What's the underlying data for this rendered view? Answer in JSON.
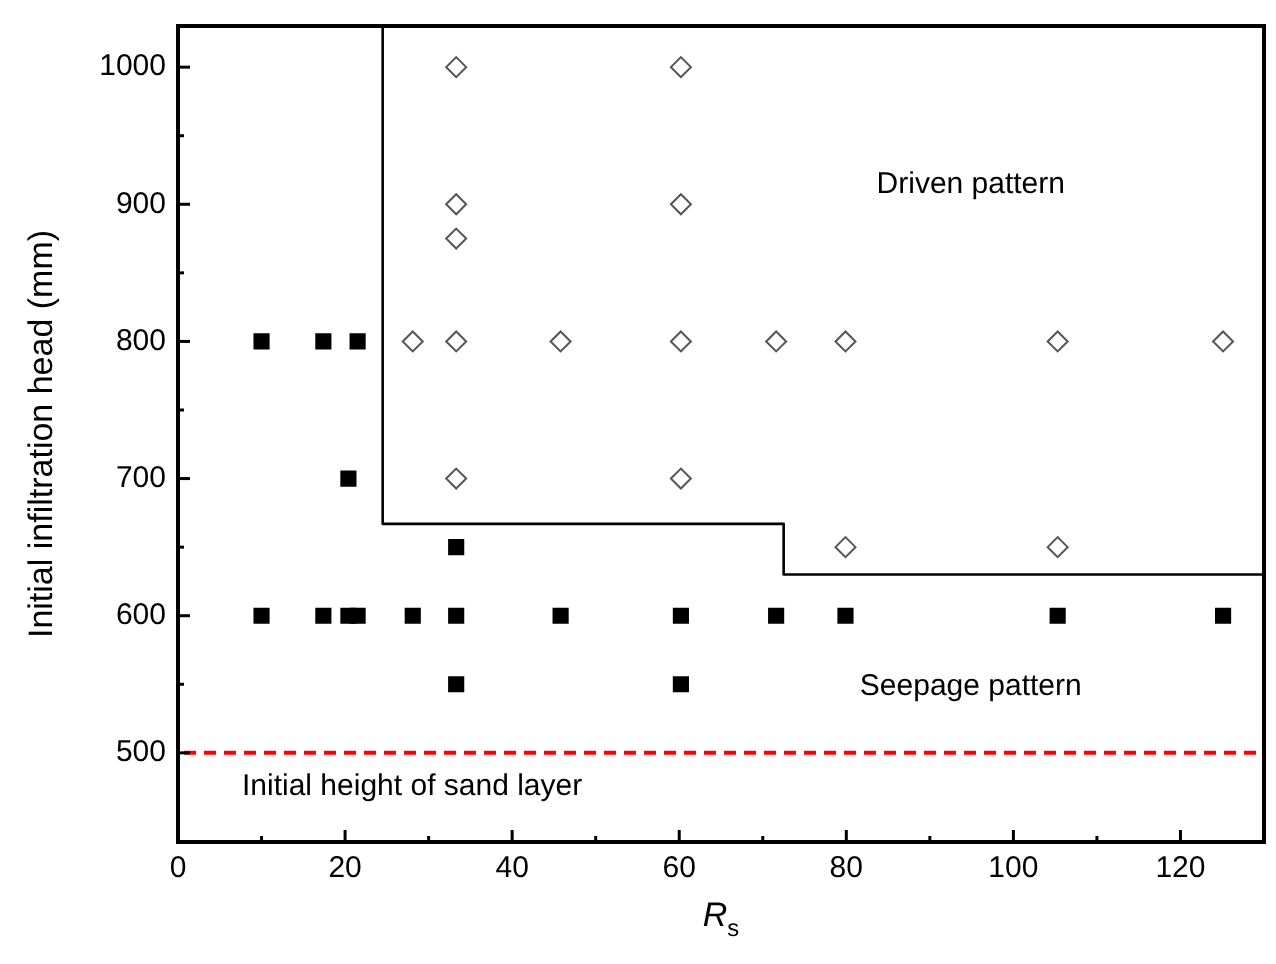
{
  "chart_data": {
    "type": "scatter",
    "xlabel": "R$_{s}$",
    "ylabel": "Initial infiltration head (mm)",
    "xlim": [
      0,
      130
    ],
    "ylim": [
      435,
      1030
    ],
    "xticks": [
      0,
      {
        "value": 10,
        "label": null
      },
      20,
      {
        "value": 30,
        "label": null
      },
      40,
      {
        "value": 50,
        "label": null
      },
      60,
      {
        "value": 70,
        "label": null
      },
      80,
      {
        "value": 90,
        "label": null
      },
      100,
      {
        "value": 110,
        "label": null
      },
      120
    ],
    "yticks": [
      500,
      {
        "value": 550,
        "label": null
      },
      600,
      {
        "value": 650,
        "label": null
      },
      700,
      {
        "value": 750,
        "label": null
      },
      800,
      {
        "value": 850,
        "label": null
      },
      900,
      {
        "value": 950,
        "label": null
      },
      1000
    ],
    "grid": false,
    "legend": false,
    "series": [
      {
        "marker": "square",
        "color": "#000000",
        "x": [
          10,
          17.4,
          21.5,
          20.4,
          33.3,
          10,
          17.4,
          20.4,
          21.5,
          28.1,
          33.3,
          45.8,
          60.2,
          71.6,
          79.9,
          105.3,
          125.1,
          33.3,
          60.2
        ],
        "values": [
          800,
          800,
          800,
          700,
          650,
          600,
          600,
          600,
          600,
          600,
          600,
          600,
          600,
          600,
          600,
          600,
          600,
          550,
          550
        ]
      },
      {
        "marker": "diamond",
        "color": "#555555",
        "x": [
          33.3,
          60.2,
          33.3,
          60.2,
          33.3,
          28.1,
          33.3,
          45.8,
          60.2,
          71.6,
          79.9,
          105.3,
          125.1,
          33.3,
          60.2,
          79.9,
          105.3
        ],
        "values": [
          1000,
          1000,
          900,
          900,
          875,
          800,
          800,
          800,
          800,
          800,
          800,
          800,
          800,
          700,
          700,
          650,
          650
        ]
      },
      {
        "type": "line",
        "marker": "none",
        "line_style": "solid",
        "color": "#000000",
        "x": [
          24.5,
          24.5,
          72.5,
          72.5,
          130
        ],
        "values": [
          1030,
          667,
          667,
          630,
          630
        ]
      }
    ],
    "ref_lines": [
      {
        "axis": "y",
        "value": 500,
        "label": "Initial height of sand layer",
        "color": "#ff0000",
        "line_style": "dashed"
      }
    ],
    "annotations": [
      "Driven pattern",
      "Seepage pattern"
    ]
  }
}
